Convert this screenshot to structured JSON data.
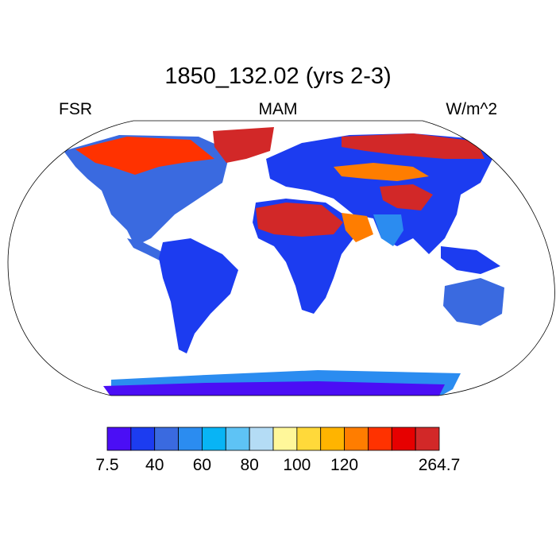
{
  "title": "1850_132.02 (yrs 2-3)",
  "left_label": "FSR",
  "center_label": "MAM",
  "right_label": "W/m^2",
  "colorbar": {
    "colors": [
      "#4b0ef5",
      "#1c3cf0",
      "#3a6ae0",
      "#2b8cf0",
      "#08b4f5",
      "#5ec3f5",
      "#b4dcf5",
      "#fff79a",
      "#ffd93a",
      "#ffb400",
      "#ff7d00",
      "#ff3200",
      "#e60000",
      "#d22828"
    ],
    "tick_labels": [
      "7.5",
      "40",
      "60",
      "80",
      "100",
      "120",
      "264.7"
    ]
  },
  "land_colors": {
    "ocean": "#ffffff",
    "dark_blue": "#1c3cf0",
    "mid_blue": "#3a6ae0",
    "light_blue": "#2b8cf0",
    "red": "#d22828",
    "orange": "#ff7d00"
  }
}
